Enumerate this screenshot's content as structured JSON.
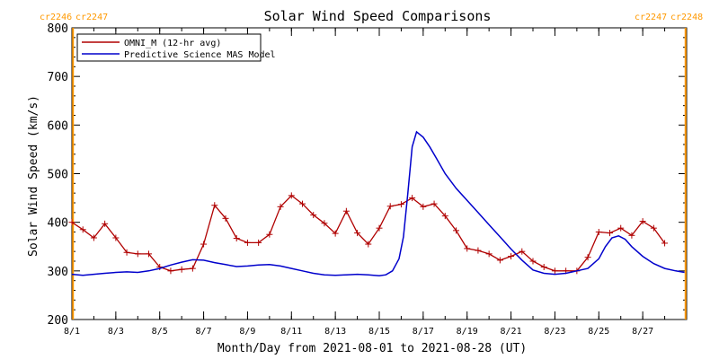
{
  "chart_data": {
    "type": "line",
    "title": "Solar Wind Speed Comparisons",
    "xlabel": "Month/Day from 2021-08-01 to 2021-08-28 (UT)",
    "ylabel": "Solar Wind Speed (km/s)",
    "xlim": [
      0,
      28
    ],
    "ylim": [
      200,
      800
    ],
    "yticks": [
      200,
      300,
      400,
      500,
      600,
      700,
      800
    ],
    "xticks": [
      {
        "x": 0,
        "label": "8/1"
      },
      {
        "x": 2,
        "label": "8/3"
      },
      {
        "x": 4,
        "label": "8/5"
      },
      {
        "x": 6,
        "label": "8/7"
      },
      {
        "x": 8,
        "label": "8/9"
      },
      {
        "x": 10,
        "label": "8/11"
      },
      {
        "x": 12,
        "label": "8/13"
      },
      {
        "x": 14,
        "label": "8/15"
      },
      {
        "x": 16,
        "label": "8/17"
      },
      {
        "x": 18,
        "label": "8/19"
      },
      {
        "x": 20,
        "label": "8/21"
      },
      {
        "x": 22,
        "label": "8/23"
      },
      {
        "x": 24,
        "label": "8/25"
      },
      {
        "x": 26,
        "label": "8/27"
      }
    ],
    "legend_position": "top-left",
    "grid": false,
    "series": [
      {
        "name": "OMNI_M (12-hr avg)",
        "color": "#b00000",
        "marker": "plus",
        "x": [
          0,
          0.5,
          1,
          1.5,
          2,
          2.5,
          3,
          3.5,
          4,
          4.5,
          5,
          5.5,
          6,
          6.5,
          7,
          7.5,
          8,
          8.5,
          9,
          9.5,
          10,
          10.5,
          11,
          11.5,
          12,
          12.5,
          13,
          13.5,
          14,
          14.5,
          15,
          15.5,
          16,
          16.5,
          17,
          17.5,
          18,
          18.5,
          19,
          19.5,
          20,
          20.5,
          21,
          21.5,
          22,
          22.5,
          23,
          23.5,
          24,
          24.5,
          25,
          25.5,
          26,
          26.5,
          27,
          27.5,
          28
        ],
        "values": [
          400,
          385,
          368,
          397,
          368,
          338,
          335,
          335,
          308,
          300,
          303,
          305,
          355,
          435,
          408,
          367,
          358,
          358,
          375,
          432,
          455,
          438,
          415,
          398,
          377,
          423,
          378,
          355,
          388,
          433,
          437,
          450,
          432,
          438,
          413,
          383,
          346,
          342,
          335,
          322,
          330,
          340,
          320,
          308,
          300,
          300,
          300,
          328,
          380,
          378,
          388,
          373,
          402,
          388,
          357,
          null,
          null
        ]
      },
      {
        "name": "Predictive Science MAS Model",
        "color": "#0000cc",
        "marker": "none",
        "x": [
          0,
          0.5,
          1,
          1.5,
          2,
          2.5,
          3,
          3.5,
          4,
          4.5,
          5,
          5.5,
          6,
          6.5,
          7,
          7.5,
          8,
          8.5,
          9,
          9.5,
          10,
          10.5,
          11,
          11.5,
          12,
          12.5,
          13,
          13.5,
          14,
          14.3,
          14.6,
          14.9,
          15.1,
          15.3,
          15.5,
          15.7,
          16,
          16.3,
          16.6,
          17,
          17.5,
          18,
          18.5,
          19,
          19.5,
          20,
          20.5,
          21,
          21.5,
          22,
          22.5,
          23,
          23.5,
          24,
          24.3,
          24.6,
          24.9,
          25.2,
          25.5,
          26,
          26.5,
          27,
          27.5,
          27.9
        ],
        "values": [
          293,
          291,
          293,
          295,
          297,
          298,
          297,
          300,
          305,
          312,
          318,
          323,
          322,
          317,
          313,
          309,
          310,
          312,
          313,
          310,
          305,
          300,
          295,
          292,
          291,
          292,
          293,
          292,
          290,
          292,
          300,
          325,
          370,
          460,
          555,
          586,
          575,
          555,
          532,
          500,
          470,
          445,
          420,
          395,
          370,
          345,
          322,
          302,
          295,
          293,
          295,
          300,
          305,
          325,
          350,
          368,
          372,
          365,
          350,
          330,
          315,
          305,
          300,
          297
        ]
      }
    ],
    "annotations": [
      {
        "text": "cr2246",
        "color": "#ff9900",
        "position": "top-left"
      },
      {
        "text": "cr2247",
        "color": "#ff9900",
        "position": "top-left"
      },
      {
        "text": "cr2247",
        "color": "#ff9900",
        "position": "top-right"
      },
      {
        "text": "cr2248",
        "color": "#ff9900",
        "position": "top-right"
      }
    ],
    "vertical_markers": [
      {
        "x": 0.05,
        "color": "#ff9900"
      },
      {
        "x": 27.95,
        "color": "#ff9900"
      }
    ]
  }
}
